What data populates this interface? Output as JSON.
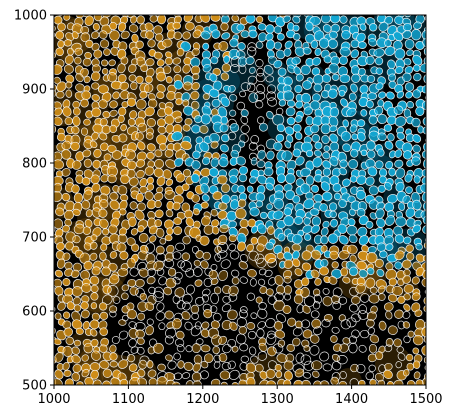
{
  "figure": {
    "kind": "fluorescence microscopy image with cell segmentation outlines",
    "background_color": "#000000",
    "channel_colors": {
      "left_cells": "#d18f18",
      "right_cells": "#13a9d6",
      "outline": "#ffffff"
    }
  },
  "axes": {
    "x": {
      "range": [
        1000,
        1500
      ],
      "ticks": [
        "1000",
        "1100",
        "1200",
        "1300",
        "1400",
        "1500"
      ],
      "tick_values": [
        1000,
        1100,
        1200,
        1300,
        1400,
        1500
      ]
    },
    "y": {
      "range": [
        500,
        1000
      ],
      "ticks": [
        "500",
        "600",
        "700",
        "800",
        "900",
        "1000"
      ],
      "tick_values": [
        500,
        600,
        700,
        800,
        900,
        1000
      ]
    }
  }
}
